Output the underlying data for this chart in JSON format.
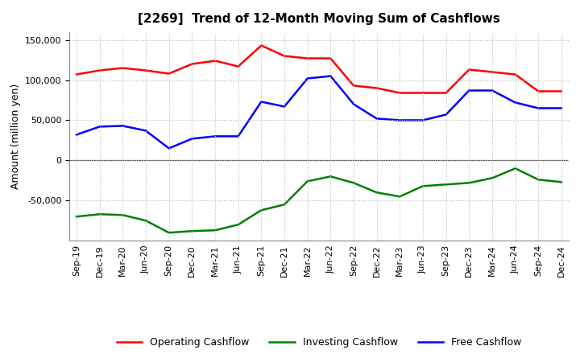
{
  "title": "[2269]  Trend of 12-Month Moving Sum of Cashflows",
  "ylabel": "Amount (million yen)",
  "x_labels": [
    "Sep-19",
    "Dec-19",
    "Mar-20",
    "Jun-20",
    "Sep-20",
    "Dec-20",
    "Mar-21",
    "Jun-21",
    "Sep-21",
    "Dec-21",
    "Mar-22",
    "Jun-22",
    "Sep-22",
    "Dec-22",
    "Mar-23",
    "Jun-23",
    "Sep-23",
    "Dec-23",
    "Mar-24",
    "Jun-24",
    "Sep-24",
    "Dec-24"
  ],
  "operating_cashflow": [
    107000,
    112000,
    115000,
    112000,
    108000,
    120000,
    124000,
    117000,
    143000,
    130000,
    127000,
    127000,
    93000,
    90000,
    84000,
    84000,
    84000,
    113000,
    110000,
    107000,
    86000,
    86000
  ],
  "investing_cashflow": [
    -70000,
    -67000,
    -68000,
    -75000,
    -90000,
    -88000,
    -87000,
    -80000,
    -62000,
    -55000,
    -26000,
    -20000,
    -28000,
    -40000,
    -45000,
    -32000,
    -30000,
    -28000,
    -22000,
    -10000,
    -24000,
    -27000
  ],
  "free_cashflow": [
    32000,
    42000,
    43000,
    37000,
    15000,
    27000,
    30000,
    30000,
    73000,
    67000,
    102000,
    105000,
    70000,
    52000,
    50000,
    50000,
    57000,
    87000,
    87000,
    72000,
    65000,
    65000
  ],
  "operating_color": "#FF0000",
  "investing_color": "#008000",
  "free_color": "#0000FF",
  "ylim": [
    -100000,
    160000
  ],
  "yticks": [
    -50000,
    0,
    50000,
    100000,
    150000
  ],
  "background_color": "#FFFFFF",
  "grid_color": "#BBBBBB",
  "title_fontsize": 11,
  "axis_fontsize": 9,
  "tick_fontsize": 8,
  "legend_fontsize": 9,
  "linewidth": 1.8
}
